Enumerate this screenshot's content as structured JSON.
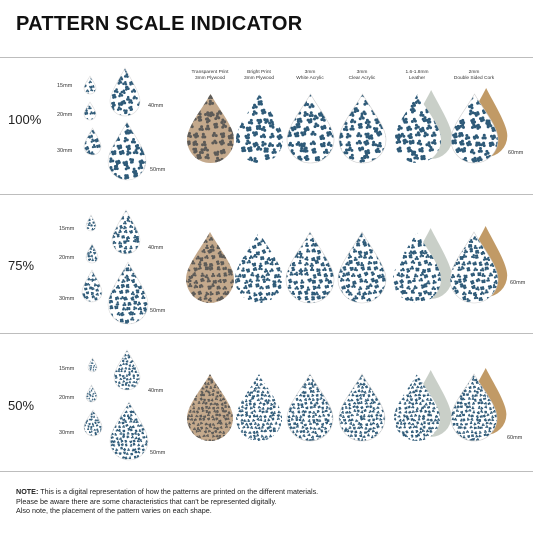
{
  "title": "PATTERN SCALE INDICATOR",
  "materials": [
    {
      "line1": "Transparent Print",
      "line2": "3mm Plywood"
    },
    {
      "line1": "Bright Print",
      "line2": "3mm Plywood"
    },
    {
      "line1": "3mm",
      "line2": "White Acrylic"
    },
    {
      "line1": "3mm",
      "line2": "Clear Acrylic"
    },
    {
      "line1": "1.6-1.8mm",
      "line2": "Leather"
    },
    {
      "line1": "2mm",
      "line2": "Double Sided Cork"
    }
  ],
  "scales": [
    {
      "label": "100%",
      "sizes": [
        "15mm",
        "20mm",
        "30mm",
        "40mm",
        "50mm"
      ],
      "shape_size": "60mm"
    },
    {
      "label": "75%",
      "sizes": [
        "15mm",
        "20mm",
        "30mm",
        "40mm",
        "50mm"
      ],
      "shape_size": "60mm"
    },
    {
      "label": "50%",
      "sizes": [
        "15mm",
        "20mm",
        "30mm",
        "40mm",
        "50mm"
      ],
      "shape_size": "60mm"
    }
  ],
  "note": {
    "label": "NOTE:",
    "line1": "This is a digital representation of how the patterns are printed on the different materials.",
    "line2": "Please be aware there are some characteristics that can't be represented digitally.",
    "line3": "Also note, the placement of the pattern varies on each shape."
  },
  "colors": {
    "pattern_blue": "#2e5a78",
    "plywood": "#c4a98c",
    "plywood_print": "#5c5a57",
    "leather_back": "#c9cfc8",
    "cork_back": "#c19a66",
    "white": "#ffffff"
  }
}
